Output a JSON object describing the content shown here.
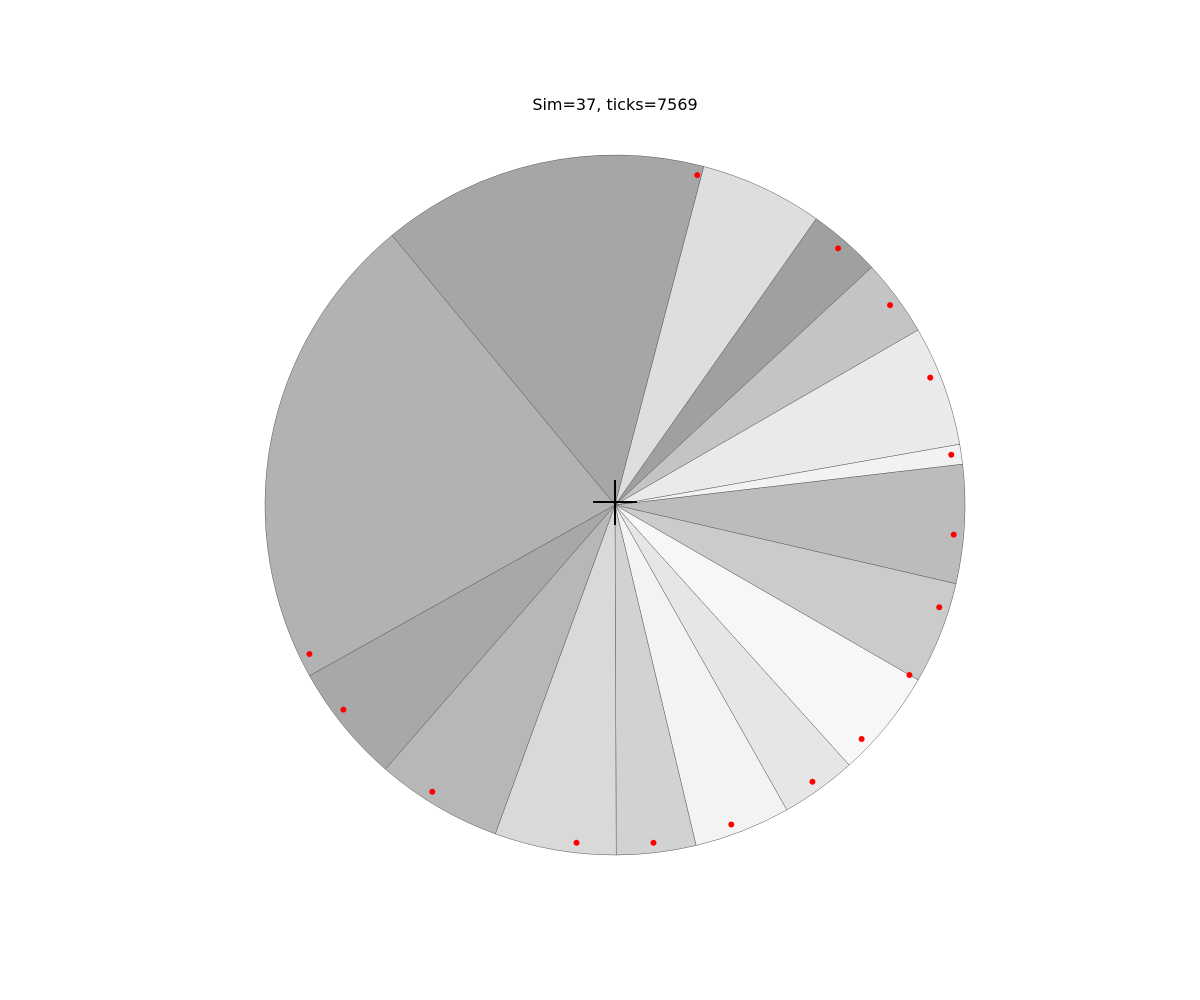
{
  "chart_data": {
    "type": "pie",
    "title": "Sim=37, ticks=7569",
    "wedges": [
      {
        "start_deg": -39.6,
        "end_deg": 14.7,
        "shade": "#a6a6a6"
      },
      {
        "start_deg": 14.7,
        "end_deg": 35.1,
        "shade": "#dedede"
      },
      {
        "start_deg": 35.1,
        "end_deg": 47.2,
        "shade": "#a0a0a0"
      },
      {
        "start_deg": 47.2,
        "end_deg": 60.0,
        "shade": "#c4c4c4"
      },
      {
        "start_deg": 60.0,
        "end_deg": 80.0,
        "shade": "#eaeaea"
      },
      {
        "start_deg": 80.0,
        "end_deg": 83.3,
        "shade": "#f2f2f2"
      },
      {
        "start_deg": 83.3,
        "end_deg": 103.0,
        "shade": "#bcbcbc"
      },
      {
        "start_deg": 103.0,
        "end_deg": 120.0,
        "shade": "#cbcbcb"
      },
      {
        "start_deg": 120.0,
        "end_deg": 138.0,
        "shade": "#f7f7f7"
      },
      {
        "start_deg": 138.0,
        "end_deg": 150.6,
        "shade": "#e6e6e6"
      },
      {
        "start_deg": 150.6,
        "end_deg": 166.6,
        "shade": "#f3f3f3"
      },
      {
        "start_deg": 166.6,
        "end_deg": 179.8,
        "shade": "#d2d2d2"
      },
      {
        "start_deg": 179.8,
        "end_deg": 200.0,
        "shade": "#d9d9d9"
      },
      {
        "start_deg": 200.0,
        "end_deg": 221.0,
        "shade": "#b7b7b7"
      },
      {
        "start_deg": 221.0,
        "end_deg": 240.8,
        "shade": "#a8a8a8"
      },
      {
        "start_deg": 240.8,
        "end_deg": 320.4,
        "shade": "#b2b2b2"
      }
    ],
    "markers_deg": [
      14.0,
      41.0,
      54.0,
      68.0,
      81.5,
      95.0,
      107.5,
      120.0,
      133.5,
      144.5,
      160.0,
      173.5,
      186.5,
      212.5,
      233.0,
      244.0
    ],
    "center_marker": "crosshair",
    "grid": false,
    "legend": "none"
  }
}
